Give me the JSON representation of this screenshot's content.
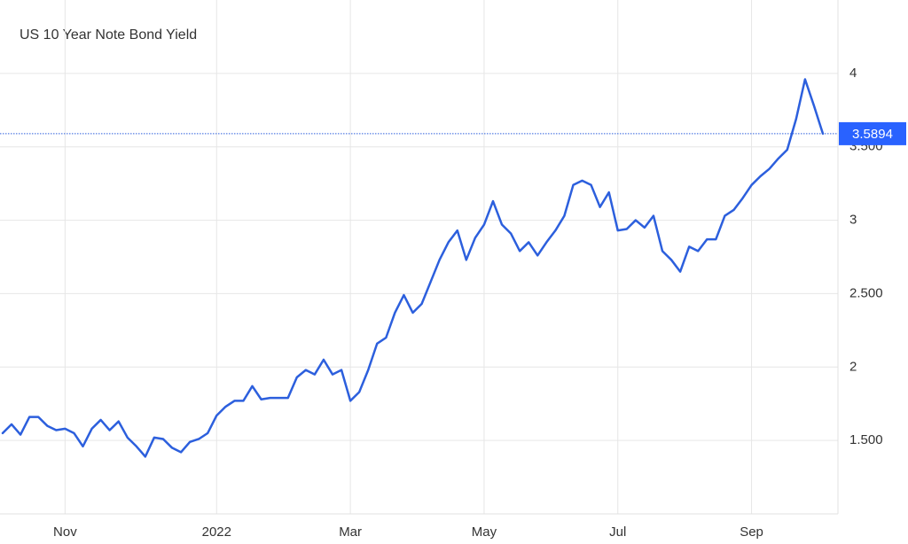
{
  "chart_data": {
    "type": "line",
    "title": "US 10 Year Note Bond Yield",
    "categories": [
      null,
      null,
      null,
      null,
      null,
      null,
      null,
      "Nov",
      null,
      null,
      null,
      null,
      null,
      null,
      null,
      null,
      null,
      null,
      null,
      null,
      null,
      null,
      null,
      null,
      "2022",
      null,
      null,
      null,
      null,
      null,
      null,
      null,
      null,
      null,
      null,
      null,
      null,
      null,
      null,
      "Mar",
      null,
      null,
      null,
      null,
      null,
      null,
      null,
      null,
      null,
      null,
      null,
      null,
      null,
      null,
      "May",
      null,
      null,
      null,
      null,
      null,
      null,
      null,
      null,
      null,
      null,
      null,
      null,
      null,
      null,
      "Jul",
      null,
      null,
      null,
      null,
      null,
      null,
      null,
      null,
      null,
      null,
      null,
      null,
      null,
      null,
      "Sep",
      null,
      null,
      null,
      null,
      null,
      null,
      null,
      null
    ],
    "series": [
      {
        "name": "US 10 Year Note Bond Yield",
        "color": "#2c5fdd",
        "values": [
          1.55,
          1.61,
          1.54,
          1.66,
          1.66,
          1.6,
          1.57,
          1.58,
          1.55,
          1.46,
          1.58,
          1.64,
          1.57,
          1.63,
          1.52,
          1.46,
          1.39,
          1.52,
          1.51,
          1.45,
          1.42,
          1.49,
          1.51,
          1.55,
          1.67,
          1.73,
          1.77,
          1.77,
          1.87,
          1.78,
          1.79,
          1.79,
          1.79,
          1.93,
          1.98,
          1.95,
          2.05,
          1.95,
          1.98,
          1.77,
          1.83,
          1.98,
          2.16,
          2.2,
          2.37,
          2.49,
          2.37,
          2.43,
          2.58,
          2.73,
          2.85,
          2.93,
          2.73,
          2.88,
          2.97,
          3.13,
          2.97,
          2.91,
          2.79,
          2.85,
          2.76,
          2.85,
          2.93,
          3.03,
          3.24,
          3.27,
          3.24,
          3.09,
          3.19,
          2.93,
          2.94,
          3.0,
          2.95,
          3.03,
          2.79,
          2.73,
          2.65,
          2.82,
          2.79,
          2.87,
          2.87,
          3.03,
          3.07,
          3.15,
          3.24,
          3.3,
          3.35,
          3.42,
          3.48,
          3.69,
          3.96,
          3.78,
          3.5894
        ]
      }
    ],
    "current_value": 3.5894,
    "ylim": [
      1.0,
      4.5
    ],
    "yticks": [
      {
        "value": 1.5,
        "label": "1.500"
      },
      2,
      {
        "value": 2.5,
        "label": "2.500"
      },
      3,
      {
        "value": 3.5,
        "label": "3.500"
      },
      4
    ],
    "grid": true
  }
}
